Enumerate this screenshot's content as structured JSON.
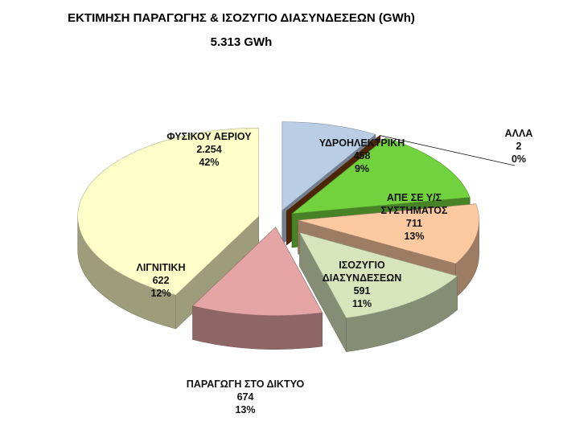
{
  "chart_data": {
    "type": "pie3d",
    "title": "ΕΚΤΙΜΗΣΗ ΠΑΡΑΓΩΓΗΣ & ΙΣΟΖΥΓΙΟ ΔΙΑΣΥΝΔΕΣΕΩΝ (GWh)",
    "subtitle": "5.313 GWh",
    "categories": [
      "ΥΔΡΟΗΛΕΚΤΡΙΚΗ",
      "ΑΛΛΑ",
      "ΑΠΕ ΣΕ Υ/Σ ΣΥΣΤΗΜΑΤΟΣ",
      "ΙΣΟΖΥΓΙΟ ΔΙΑΣΥΝΔΕΣΕΩΝ",
      "ΠΑΡΑΓΩΓΗ ΣΤΟ ΔΙΚΤΥΟ",
      "ΛΙΓΝΙΤΙΚΗ",
      "ΦΥΣΙΚΟΥ ΑΕΡΙΟΥ"
    ],
    "values": [
      458,
      2,
      711,
      591,
      674,
      622,
      2254
    ],
    "value_labels": [
      "458",
      "2",
      "711",
      "591",
      "674",
      "622",
      "2.254"
    ],
    "percentages": [
      9,
      0,
      13,
      11,
      13,
      12,
      42
    ],
    "percentage_labels": [
      "9%",
      "0%",
      "13%",
      "11%",
      "13%",
      "12%",
      "42%"
    ],
    "colors": [
      "#b9cde5",
      "#7a3a0a",
      "#72d23e",
      "#fcc9a1",
      "#d8e4bc",
      "#e6a5a5",
      "#fefec8"
    ]
  }
}
